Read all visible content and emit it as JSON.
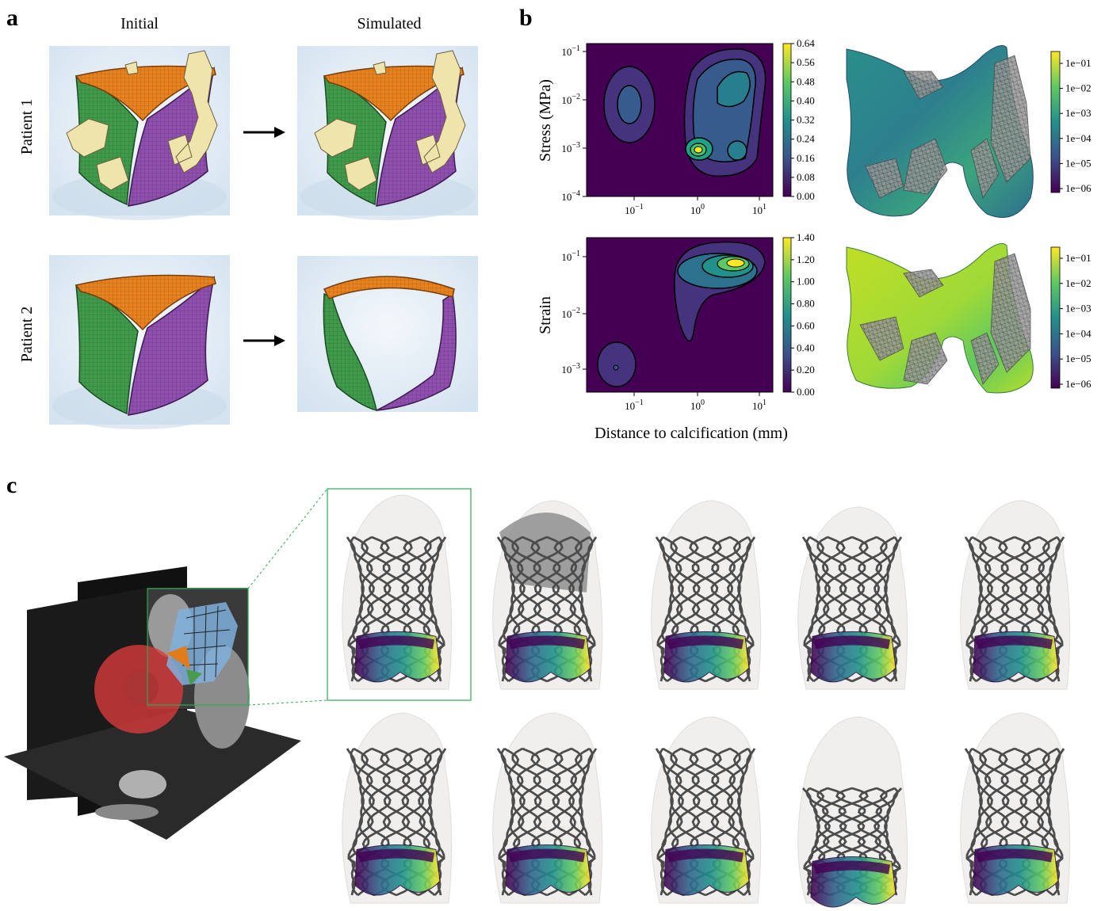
{
  "panel_a": {
    "label": "a",
    "columns": [
      "Initial",
      "Simulated"
    ],
    "rows": [
      "Patient 1",
      "Patient 2"
    ]
  },
  "panel_b": {
    "label": "b",
    "stress_plot": {
      "y_label": "Stress (MPa)",
      "y_ticks": [
        {
          "base": "10",
          "exponent": "−1"
        },
        {
          "base": "10",
          "exponent": "−2"
        },
        {
          "base": "10",
          "exponent": "−3"
        },
        {
          "base": "10",
          "exponent": "−4"
        }
      ],
      "x_ticks": [
        {
          "base": "10",
          "exponent": "−1"
        },
        {
          "base": "10",
          "exponent": "0"
        },
        {
          "base": "10",
          "exponent": "1"
        }
      ],
      "colorbar_ticks": [
        "0.00",
        "0.08",
        "0.16",
        "0.24",
        "0.32",
        "0.40",
        "0.48",
        "0.56",
        "0.64"
      ]
    },
    "strain_plot": {
      "y_label": "Strain",
      "y_ticks": [
        {
          "base": "10",
          "exponent": "−1"
        },
        {
          "base": "10",
          "exponent": "−2"
        },
        {
          "base": "10",
          "exponent": "−3"
        }
      ],
      "x_ticks": [
        {
          "base": "10",
          "exponent": "−1"
        },
        {
          "base": "10",
          "exponent": "0"
        },
        {
          "base": "10",
          "exponent": "1"
        }
      ],
      "colorbar_ticks": [
        "0.00",
        "0.20",
        "0.40",
        "0.60",
        "0.80",
        "1.00",
        "1.20",
        "1.40"
      ]
    },
    "x_label": "Distance to calcification (mm)",
    "stress_map_colorbar_ticks": [
      "1e−01",
      "1e−02",
      "1e−03",
      "1e−04",
      "1e−05",
      "1e−06"
    ],
    "strain_map_colorbar_ticks": [
      "1e−01",
      "1e−02",
      "1e−03",
      "1e−04",
      "1e−05",
      "1e−06"
    ]
  },
  "panel_c": {
    "label": "c"
  }
}
